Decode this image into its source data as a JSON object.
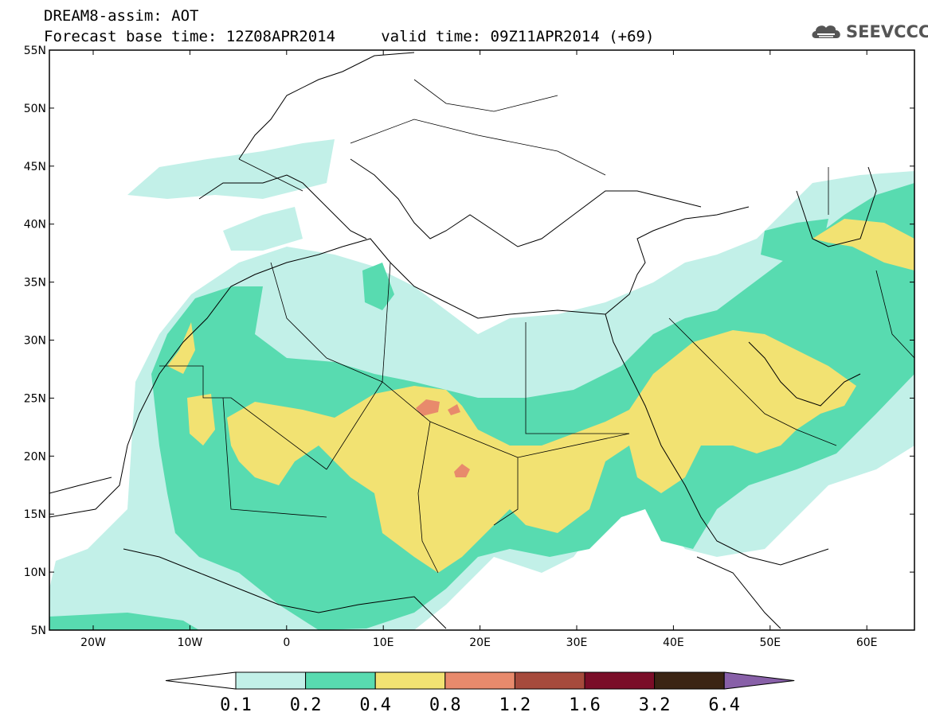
{
  "header": {
    "line1": "DREAM8-assim: AOT",
    "line2": "Forecast base time: 12Z08APR2014     valid time: 09Z11APR2014 (+69)"
  },
  "logo": {
    "text": "SEEVCCC",
    "icon": "cloud-icon"
  },
  "axes": {
    "y_ticks": [
      "55N",
      "50N",
      "45N",
      "40N",
      "35N",
      "30N",
      "25N",
      "20N",
      "15N",
      "10N",
      "5N"
    ],
    "x_ticks": [
      "20W",
      "10W",
      "0",
      "10E",
      "20E",
      "30E",
      "40E",
      "50E",
      "60E"
    ]
  },
  "colorbar": {
    "labels": [
      "0.1",
      "0.2",
      "0.4",
      "0.8",
      "1.2",
      "1.6",
      "3.2",
      "6.4"
    ],
    "colors": [
      "#ffffff",
      "#c2f0e8",
      "#58dbb0",
      "#f2e272",
      "#e88a6c",
      "#a64a3c",
      "#7a0d28",
      "#3b2414",
      "#8860a8"
    ]
  },
  "field_colors": {
    "c01": "#c2f0e8",
    "c02": "#58dbb0",
    "c04": "#f2e272",
    "c08": "#e88a6c"
  }
}
